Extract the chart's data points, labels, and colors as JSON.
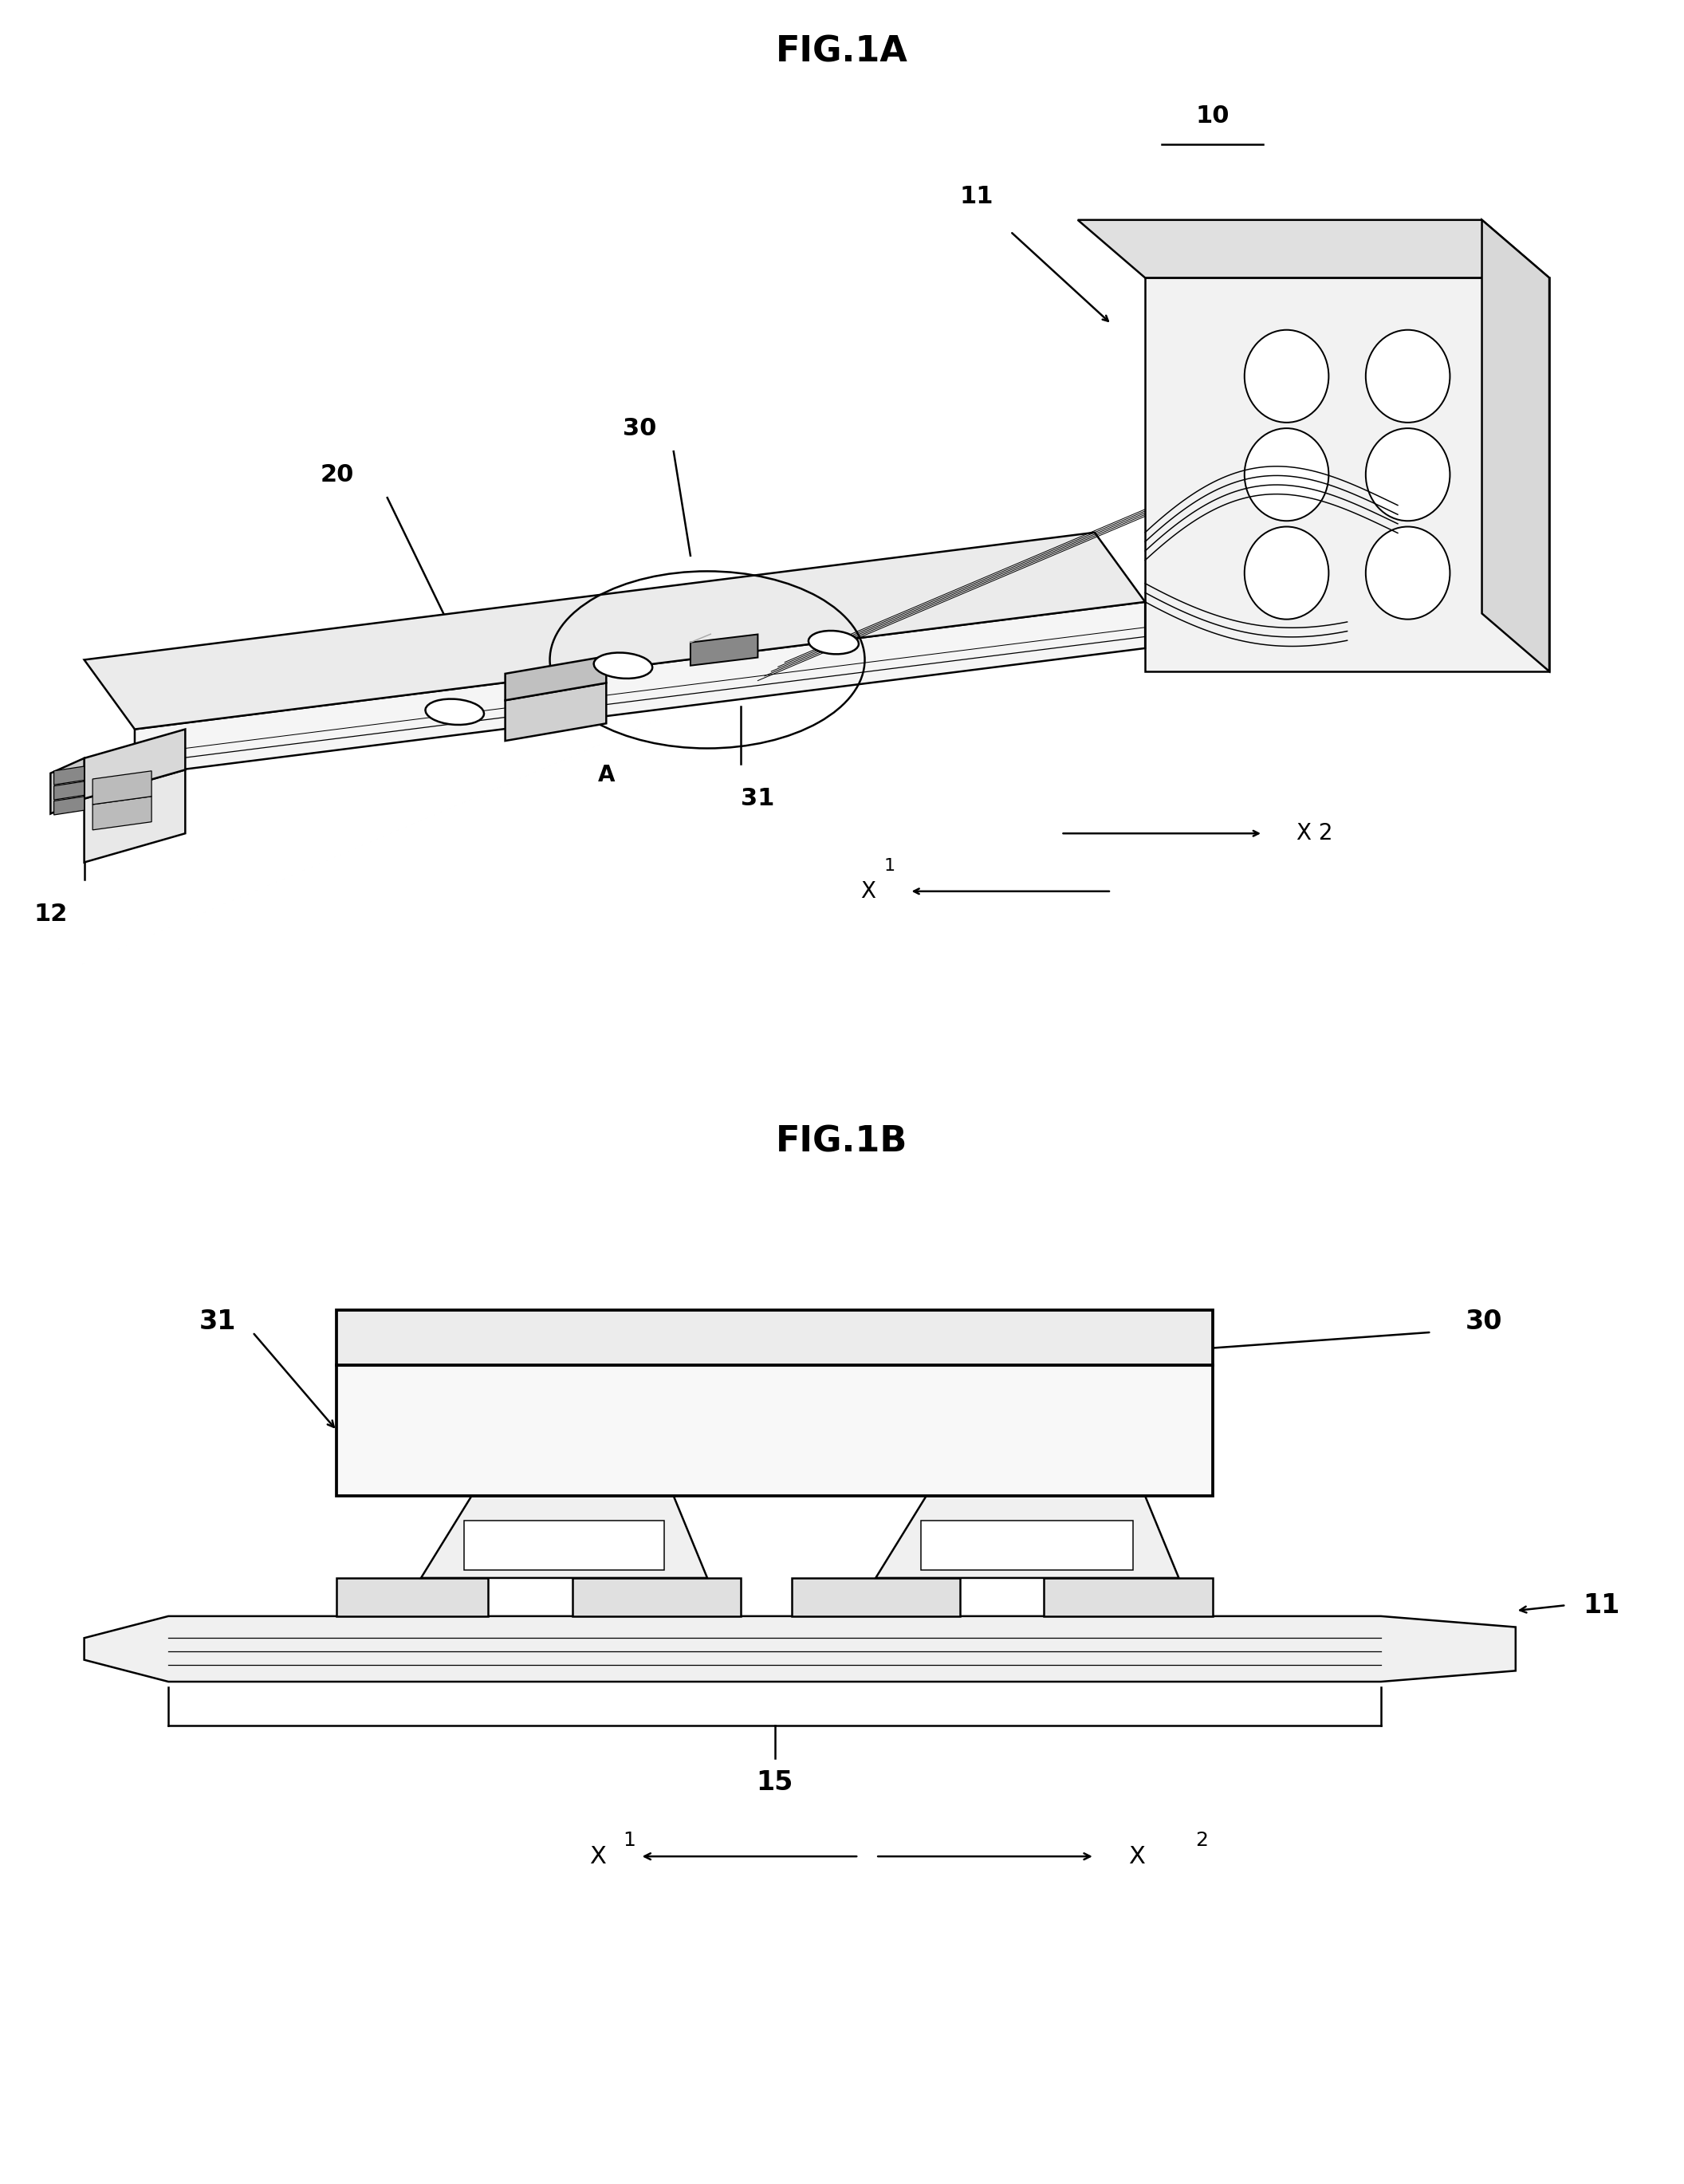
{
  "fig1a_title": "FIG.1A",
  "fig1b_title": "FIG.1B",
  "label_10": "10",
  "label_11": "11",
  "label_12": "12",
  "label_15": "15",
  "label_20": "20",
  "label_30": "30",
  "label_31": "31",
  "label_A": "A",
  "label_X1": "X1",
  "label_X2": "X2",
  "bg_color": "#ffffff",
  "line_color": "#000000",
  "lw": 1.8,
  "fig_title_fontsize": 32,
  "label_fontsize": 20
}
